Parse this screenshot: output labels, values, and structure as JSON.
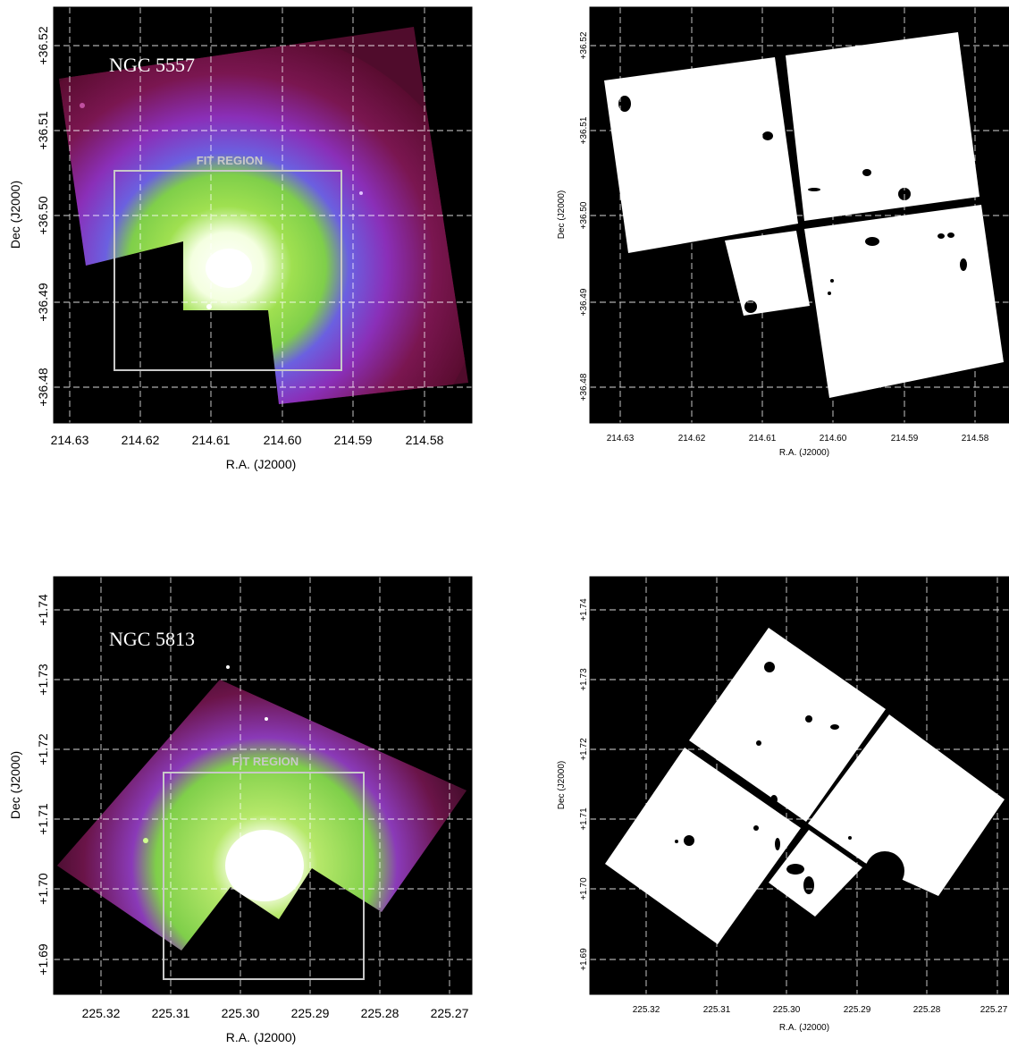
{
  "panels": [
    {
      "id": "ngc5557-image",
      "galaxy_label": "NGC 5557",
      "fit_label": "FIT REGION",
      "xlabel": "R.A. (J2000)",
      "ylabel": "Dec (J2000)",
      "x_ticks": [
        "214.63",
        "214.62",
        "214.61",
        "214.60",
        "214.59",
        "214.58"
      ],
      "y_ticks": [
        "+36.52",
        "+36.51",
        "+36.50",
        "+36.49",
        "+36.48"
      ]
    },
    {
      "id": "ngc5557-mask",
      "xlabel": "R.A. (J2000)",
      "ylabel": "Dec (J2000)",
      "x_ticks": [
        "214.63",
        "214.62",
        "214.61",
        "214.60",
        "214.59",
        "214.58"
      ],
      "y_ticks": [
        "+36.52",
        "+36.51",
        "+36.50",
        "+36.49",
        "+36.48"
      ]
    },
    {
      "id": "ngc5813-image",
      "galaxy_label": "NGC 5813",
      "fit_label": "FIT REGION",
      "xlabel": "R.A. (J2000)",
      "ylabel": "Dec (J2000)",
      "x_ticks": [
        "225.32",
        "225.31",
        "225.30",
        "225.29",
        "225.28",
        "225.27"
      ],
      "y_ticks": [
        "+1.74",
        "+1.73",
        "+1.72",
        "+1.71",
        "+1.70",
        "+1.69"
      ]
    },
    {
      "id": "ngc5813-mask",
      "xlabel": "R.A. (J2000)",
      "ylabel": "Dec (J2000)",
      "x_ticks": [
        "225.32",
        "225.31",
        "225.30",
        "225.29",
        "225.28",
        "225.27"
      ],
      "y_ticks": [
        "+1.74",
        "+1.73",
        "+1.72",
        "+1.71",
        "+1.70",
        "+1.69"
      ]
    }
  ],
  "colors": {
    "background": "#000000",
    "grid": "#ffffff",
    "fit_box": "#c8c8c8",
    "halo_outer": "#7a1040",
    "halo_mid": "#8a2fc0",
    "core_green": "#8fd64a",
    "core_white": "#ffffff",
    "mask": "#ffffff"
  }
}
